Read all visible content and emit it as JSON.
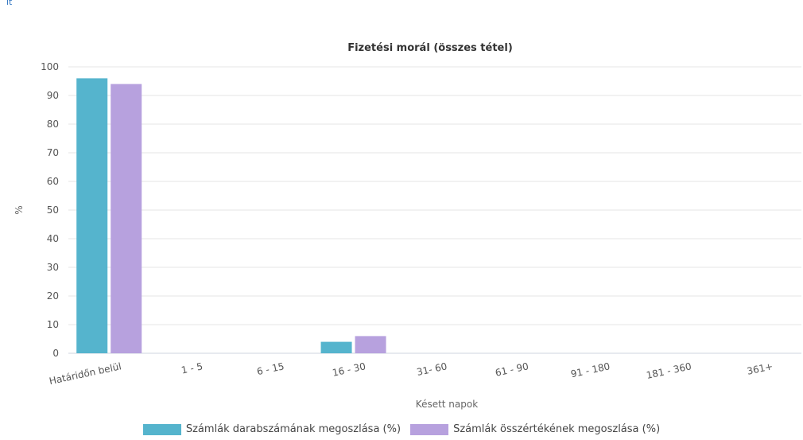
{
  "corner_text": "it",
  "chart_data": {
    "type": "bar",
    "title": "Fizetési morál (összes tétel)",
    "xlabel": "Késett napok",
    "ylabel": "%",
    "ylim": [
      0,
      100
    ],
    "yticks": [
      0,
      10,
      20,
      30,
      40,
      50,
      60,
      70,
      80,
      90,
      100
    ],
    "grid": true,
    "legend_position": "bottom",
    "categories": [
      "Határidőn belül",
      "1 - 5",
      "6 - 15",
      "16 - 30",
      "31- 60",
      "61 - 90",
      "91 - 180",
      "181 - 360",
      "361+"
    ],
    "series": [
      {
        "name": "Számlák darabszámának megoszlása (%)",
        "color": "#55b4cd",
        "values": [
          96,
          0,
          0,
          4,
          0,
          0,
          0,
          0,
          0
        ]
      },
      {
        "name": "Számlák összértékének megoszlása (%)",
        "color": "#b7a1de",
        "values": [
          94,
          0,
          0,
          6,
          0,
          0,
          0,
          0,
          0
        ]
      }
    ]
  }
}
